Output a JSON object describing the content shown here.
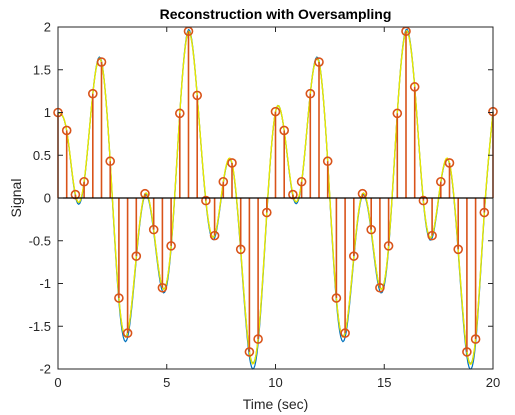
{
  "chart_data": {
    "type": "line",
    "title": "Reconstruction with Oversampling",
    "xlabel": "Time (sec)",
    "ylabel": "Signal",
    "xlim": [
      0,
      20
    ],
    "ylim": [
      -2,
      2
    ],
    "xticks": [
      0,
      5,
      10,
      15,
      20
    ],
    "xtick_labels": [
      "0",
      "5",
      "10",
      "15",
      "20"
    ],
    "yticks": [
      -2,
      -1.5,
      -1,
      -0.5,
      0,
      0.5,
      1,
      1.5,
      2
    ],
    "ytick_labels": [
      "-2",
      "-1.5",
      "-1",
      "-0.5",
      "0",
      "0.5",
      "1",
      "1.5",
      "2"
    ],
    "grid": false,
    "legend": "none",
    "colors": {
      "original_signal": "#0072bd",
      "samples": "#d95319",
      "reconstruction": "#e8e800",
      "interpolation": "#77ac30"
    },
    "series": [
      {
        "type": "stem",
        "x": [
          0,
          0.4,
          0.8,
          1.2,
          1.6,
          2.0,
          2.4,
          2.8,
          3.2,
          3.6,
          4.0,
          4.4,
          4.8,
          5.2,
          5.6,
          6.0,
          6.4,
          6.8,
          7.2,
          7.6,
          8.0,
          8.4,
          8.8,
          9.2,
          9.6,
          10.0,
          10.4,
          10.8,
          11.2,
          11.6,
          12.0,
          12.4,
          12.8,
          13.2,
          13.6,
          14.0,
          14.4,
          14.8,
          15.2,
          15.6,
          16.0,
          16.4,
          16.8,
          17.2,
          17.6,
          18.0,
          18.4,
          18.8,
          19.2,
          19.6,
          20.0
        ],
        "values": [
          1.0,
          0.79,
          0.04,
          0.19,
          1.22,
          1.59,
          0.43,
          -1.17,
          -1.58,
          -0.68,
          0.05,
          -0.37,
          -1.05,
          -0.56,
          0.99,
          1.95,
          1.2,
          -0.03,
          -0.44,
          0.19,
          0.41,
          -0.6,
          -1.8,
          -1.65,
          -0.17,
          1.01,
          0.79,
          0.04,
          0.19,
          1.22,
          1.59,
          0.43,
          -1.17,
          -1.58,
          -0.68,
          0.05,
          -0.37,
          -1.05,
          -0.56,
          0.99,
          1.95,
          1.3,
          -0.03,
          -0.44,
          0.19,
          0.41,
          -0.6,
          -1.8,
          -1.65,
          -0.17,
          1.01
        ]
      }
    ]
  }
}
